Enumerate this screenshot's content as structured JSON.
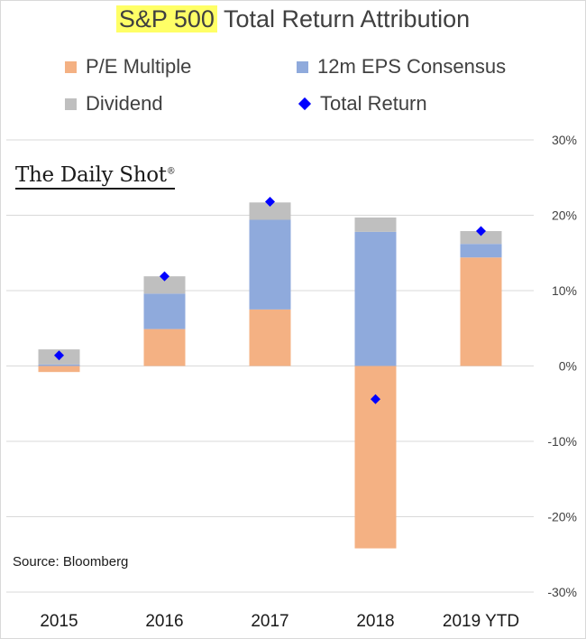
{
  "title": {
    "highlight": "S&P 500",
    "rest": " Total Return Attribution"
  },
  "legend": {
    "pe": "P/E Multiple",
    "eps": "12m EPS Consensus",
    "div": "Dividend",
    "total": "Total Return"
  },
  "logo_text": "The Daily Shot",
  "logo_mark": "®",
  "source": "Source: Bloomberg",
  "colors": {
    "pe": "#f4b183",
    "eps": "#8faadc",
    "div": "#bfbfbf",
    "total": "#0000ff",
    "highlight": "#ffff66"
  },
  "chart_data": {
    "type": "bar",
    "stacked": true,
    "title": "S&P 500 Total Return Attribution",
    "categories": [
      "2015",
      "2016",
      "2017",
      "2018",
      "2019 YTD"
    ],
    "series": [
      {
        "name": "P/E Multiple",
        "values": [
          -0.8,
          4.9,
          7.5,
          -24.2,
          14.4
        ]
      },
      {
        "name": "12m EPS Consensus",
        "values": [
          0.2,
          4.7,
          11.9,
          17.8,
          1.8
        ]
      },
      {
        "name": "Dividend",
        "values": [
          2.0,
          2.3,
          2.3,
          1.9,
          1.7
        ]
      }
    ],
    "total_return": {
      "name": "Total Return",
      "values": [
        1.4,
        11.9,
        21.8,
        -4.4,
        17.9
      ]
    },
    "y_axis": {
      "min": -30,
      "max": 30,
      "step": 10,
      "position": "right",
      "tick_labels": [
        "30%",
        "20%",
        "10%",
        "0%",
        "-10%",
        "-20%",
        "-30%"
      ]
    },
    "grid": true,
    "legend_position": "top"
  }
}
